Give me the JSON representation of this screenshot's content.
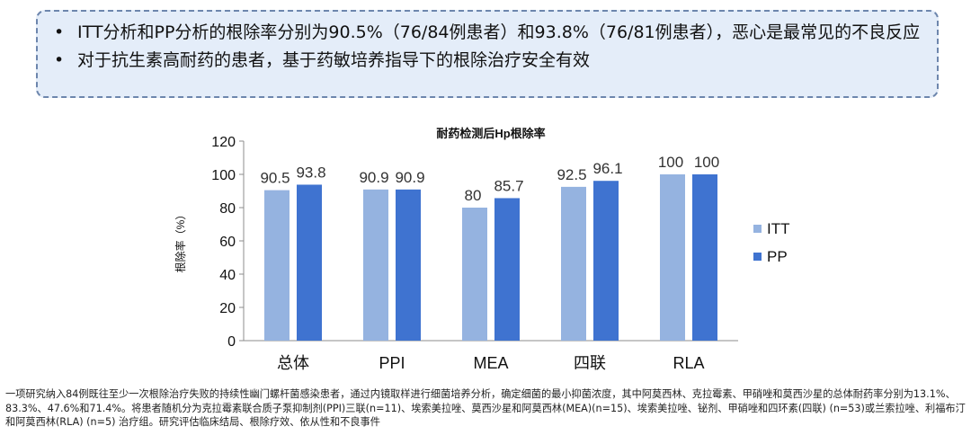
{
  "summary": {
    "bullets": [
      "ITT分析和PP分析的根除率分别为90.5%（76/84例患者）和93.8%（76/81例患者），恶心是最常见的不良反应",
      "对于抗生素高耐药的患者，基于药敏培养指导下的根除治疗安全有效"
    ]
  },
  "chart_data": {
    "type": "bar",
    "title": "耐药检测后Hp根除率",
    "ylabel": "根除率（%）",
    "xlabel": "",
    "ylim": [
      0,
      120
    ],
    "yticks": [
      "0",
      "20",
      "40",
      "60",
      "80",
      "100",
      "120"
    ],
    "categories": [
      "总体",
      "PPI",
      "MEA",
      "四联",
      "RLA"
    ],
    "series": [
      {
        "name": "ITT",
        "values": [
          90.5,
          90.9,
          80,
          92.5,
          100
        ],
        "labels": [
          "90.5",
          "90.9",
          "80",
          "92.5",
          "100"
        ],
        "color": "#95b3e0"
      },
      {
        "name": "PP",
        "values": [
          93.8,
          90.9,
          85.7,
          96.1,
          100
        ],
        "labels": [
          "93.8",
          "90.9",
          "85.7",
          "96.1",
          "100"
        ],
        "color": "#3f73d0"
      }
    ],
    "legend_position": "right",
    "grid": false
  },
  "footnote": "一项研究纳入84例既往至少一次根除治疗失败的持续性幽门螺杆菌感染患者，通过内镜取样进行细菌培养分析，确定细菌的最小抑菌浓度，其中阿莫西林、克拉霉素、甲硝唑和莫西沙星的总体耐药率分别为13.1%、83.3%、47.6%和71.4%。将患者随机分为克拉霉素联合质子泵抑制剂(PPI)三联(n=11)、埃索美拉唑、莫西沙星和阿莫西林(MEA)(n=15)、埃索美拉唑、铋剂、甲硝唑和四环素(四联) (n=53)或兰索拉唑、利福布汀和阿莫西林(RLA) (n=5) 治疗组。研究评估临床结局、根除疗效、依从性和不良事件"
}
